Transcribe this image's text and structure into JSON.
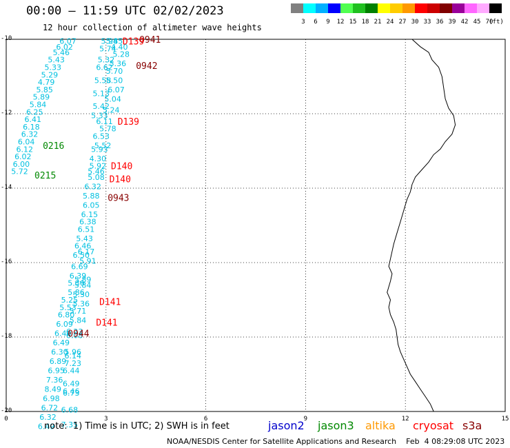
{
  "header": {
    "title": "00:00 — 11:59 UTC 02/02/2023",
    "subtitle": "12 hour collection of altimeter wave heights"
  },
  "colorbar": {
    "colors": [
      "#808080",
      "#00ffff",
      "#00b0ff",
      "#0000ff",
      "#50ff50",
      "#20c020",
      "#008000",
      "#ffff00",
      "#ffcc00",
      "#ff9900",
      "#ff0000",
      "#cc0000",
      "#800000",
      "#990099",
      "#ff66ff",
      "#ffaaff",
      "#000000"
    ],
    "labels": [
      "3",
      "6",
      "9",
      "12",
      "15",
      "18",
      "21",
      "24",
      "27",
      "30",
      "33",
      "36",
      "39",
      "42",
      "45",
      "70",
      "(ft)"
    ]
  },
  "footer": {
    "note": "note:  1) Time is in UTC; 2) SWH is in feet",
    "satellites": [
      {
        "name": "jason2",
        "color": "#0000cc"
      },
      {
        "name": "jason3",
        "color": "#008800"
      },
      {
        "name": "altika",
        "color": "#ff9900"
      },
      {
        "name": "cryosat",
        "color": "#ff0000"
      },
      {
        "name": "s3a",
        "color": "#880000"
      }
    ],
    "credit": "NOAA/NESDIS Center for Satellite Applications and Research    Feb  4 08:29:08 UTC 2023"
  },
  "chart_data": {
    "type": "scatter",
    "xlim": [
      0,
      15
    ],
    "ylim": [
      -20,
      -10
    ],
    "x_ticks": [
      "0",
      "3",
      "6",
      "9",
      "12",
      "15"
    ],
    "y_ticks": [
      "-10",
      "-12",
      "-14",
      "-16",
      "-18",
      "-20"
    ],
    "grid": true,
    "colors": {
      "cyan": "#00c0e0",
      "green": "#008800",
      "red": "#ff0000",
      "darkred": "#880000",
      "coast": "#000000"
    },
    "coastline": [
      [
        12.2,
        -10.0
      ],
      [
        12.45,
        -10.2
      ],
      [
        12.7,
        -10.35
      ],
      [
        12.8,
        -10.55
      ],
      [
        13.0,
        -10.75
      ],
      [
        13.1,
        -11.0
      ],
      [
        13.15,
        -11.3
      ],
      [
        13.2,
        -11.6
      ],
      [
        13.3,
        -11.85
      ],
      [
        13.45,
        -12.05
      ],
      [
        13.5,
        -12.3
      ],
      [
        13.4,
        -12.55
      ],
      [
        13.2,
        -12.75
      ],
      [
        13.05,
        -12.95
      ],
      [
        12.85,
        -13.1
      ],
      [
        12.7,
        -13.3
      ],
      [
        12.5,
        -13.5
      ],
      [
        12.3,
        -13.7
      ],
      [
        12.2,
        -13.9
      ],
      [
        12.15,
        -14.1
      ],
      [
        12.05,
        -14.3
      ],
      [
        11.95,
        -14.6
      ],
      [
        11.85,
        -14.9
      ],
      [
        11.75,
        -15.2
      ],
      [
        11.65,
        -15.5
      ],
      [
        11.6,
        -15.7
      ],
      [
        11.55,
        -15.9
      ],
      [
        11.5,
        -16.1
      ],
      [
        11.6,
        -16.3
      ],
      [
        11.55,
        -16.5
      ],
      [
        11.5,
        -16.65
      ],
      [
        11.45,
        -16.8
      ],
      [
        11.5,
        -16.9
      ],
      [
        11.55,
        -17.0
      ],
      [
        11.5,
        -17.2
      ],
      [
        11.55,
        -17.4
      ],
      [
        11.65,
        -17.6
      ],
      [
        11.72,
        -17.8
      ],
      [
        11.75,
        -18.0
      ],
      [
        11.78,
        -18.2
      ],
      [
        11.85,
        -18.4
      ],
      [
        11.95,
        -18.6
      ],
      [
        12.05,
        -18.8
      ],
      [
        12.15,
        -19.0
      ],
      [
        12.3,
        -19.2
      ],
      [
        12.45,
        -19.4
      ],
      [
        12.6,
        -19.6
      ],
      [
        12.75,
        -19.8
      ],
      [
        12.85,
        -20.0
      ]
    ],
    "points": [
      {
        "x": 1.6,
        "y": -10.05,
        "label": "6.07",
        "color": "cyan"
      },
      {
        "x": 1.5,
        "y": -10.2,
        "label": "6.02",
        "color": "cyan"
      },
      {
        "x": 1.4,
        "y": -10.35,
        "label": "5.46",
        "color": "cyan"
      },
      {
        "x": 1.25,
        "y": -10.55,
        "label": "5.43",
        "color": "cyan"
      },
      {
        "x": 1.15,
        "y": -10.75,
        "label": "5.33",
        "color": "cyan"
      },
      {
        "x": 1.05,
        "y": -10.95,
        "label": "5.29",
        "color": "cyan"
      },
      {
        "x": 0.95,
        "y": -11.15,
        "label": "4.79",
        "color": "cyan"
      },
      {
        "x": 0.9,
        "y": -11.35,
        "label": "5.85",
        "color": "cyan"
      },
      {
        "x": 0.8,
        "y": -11.55,
        "label": "5.89",
        "color": "cyan"
      },
      {
        "x": 0.7,
        "y": -11.75,
        "label": "5.84",
        "color": "cyan"
      },
      {
        "x": 0.6,
        "y": -11.95,
        "label": "6.25",
        "color": "cyan"
      },
      {
        "x": 0.55,
        "y": -12.15,
        "label": "6.41",
        "color": "cyan"
      },
      {
        "x": 0.5,
        "y": -12.35,
        "label": "6.18",
        "color": "cyan"
      },
      {
        "x": 0.45,
        "y": -12.55,
        "label": "6.32",
        "color": "cyan"
      },
      {
        "x": 0.35,
        "y": -12.75,
        "label": "6.04",
        "color": "cyan"
      },
      {
        "x": 0.3,
        "y": -12.95,
        "label": "6.12",
        "color": "cyan"
      },
      {
        "x": 0.25,
        "y": -13.15,
        "label": "6.02",
        "color": "cyan"
      },
      {
        "x": 0.2,
        "y": -13.35,
        "label": "6.00",
        "color": "cyan"
      },
      {
        "x": 0.15,
        "y": -13.55,
        "label": "5.72",
        "color": "cyan"
      },
      {
        "x": 2.85,
        "y": -10.05,
        "label": "5.94",
        "color": "cyan"
      },
      {
        "x": 3.0,
        "y": -10.05,
        "label": "5.85",
        "color": "cyan"
      },
      {
        "x": 2.8,
        "y": -10.25,
        "label": "5.74",
        "color": "cyan"
      },
      {
        "x": 3.15,
        "y": -10.2,
        "label": "4.40",
        "color": "cyan"
      },
      {
        "x": 3.2,
        "y": -10.4,
        "label": "5.28",
        "color": "cyan"
      },
      {
        "x": 2.75,
        "y": -10.55,
        "label": "5.32",
        "color": "cyan"
      },
      {
        "x": 3.1,
        "y": -10.65,
        "label": "5.36",
        "color": "cyan"
      },
      {
        "x": 2.7,
        "y": -10.75,
        "label": "6.62",
        "color": "cyan"
      },
      {
        "x": 3.0,
        "y": -10.85,
        "label": "5.70",
        "color": "cyan"
      },
      {
        "x": 2.65,
        "y": -11.1,
        "label": "5.58",
        "color": "cyan"
      },
      {
        "x": 3.0,
        "y": -11.1,
        "label": "5.50",
        "color": "cyan"
      },
      {
        "x": 3.05,
        "y": -11.35,
        "label": "6.07",
        "color": "cyan"
      },
      {
        "x": 2.6,
        "y": -11.45,
        "label": "5.13",
        "color": "cyan"
      },
      {
        "x": 2.95,
        "y": -11.6,
        "label": "5.04",
        "color": "cyan"
      },
      {
        "x": 2.6,
        "y": -11.8,
        "label": "5.42",
        "color": "cyan"
      },
      {
        "x": 2.9,
        "y": -11.9,
        "label": "5.24",
        "color": "cyan"
      },
      {
        "x": 2.55,
        "y": -12.05,
        "label": "5.33",
        "color": "cyan"
      },
      {
        "x": 2.7,
        "y": -12.2,
        "label": "6.11",
        "color": "cyan"
      },
      {
        "x": 2.8,
        "y": -12.4,
        "label": "5.78",
        "color": "cyan"
      },
      {
        "x": 2.6,
        "y": -12.6,
        "label": "6.53",
        "color": "cyan"
      },
      {
        "x": 2.65,
        "y": -12.85,
        "label": "5.52",
        "color": "cyan"
      },
      {
        "x": 2.55,
        "y": -12.95,
        "label": "5.93",
        "color": "cyan"
      },
      {
        "x": 2.5,
        "y": -13.2,
        "label": "4.30",
        "color": "cyan"
      },
      {
        "x": 2.5,
        "y": -13.4,
        "label": "5.92",
        "color": "cyan"
      },
      {
        "x": 2.45,
        "y": -13.55,
        "label": "5.46",
        "color": "cyan"
      },
      {
        "x": 2.45,
        "y": -13.7,
        "label": "5.08",
        "color": "cyan"
      },
      {
        "x": 2.35,
        "y": -13.95,
        "label": "6.32",
        "color": "cyan"
      },
      {
        "x": 2.3,
        "y": -14.2,
        "label": "5.88",
        "color": "cyan"
      },
      {
        "x": 2.3,
        "y": -14.45,
        "label": "6.05",
        "color": "cyan"
      },
      {
        "x": 2.25,
        "y": -14.7,
        "label": "6.15",
        "color": "cyan"
      },
      {
        "x": 2.2,
        "y": -14.9,
        "label": "6.38",
        "color": "cyan"
      },
      {
        "x": 2.15,
        "y": -15.1,
        "label": "6.51",
        "color": "cyan"
      },
      {
        "x": 2.1,
        "y": -15.35,
        "label": "5.43",
        "color": "cyan"
      },
      {
        "x": 2.05,
        "y": -15.55,
        "label": "6.46",
        "color": "cyan"
      },
      {
        "x": 2.15,
        "y": -15.7,
        "label": "6.17",
        "color": "cyan"
      },
      {
        "x": 2.0,
        "y": -15.8,
        "label": "6.50",
        "color": "cyan"
      },
      {
        "x": 2.2,
        "y": -15.95,
        "label": "5.91",
        "color": "cyan"
      },
      {
        "x": 1.95,
        "y": -16.1,
        "label": "6.69",
        "color": "cyan"
      },
      {
        "x": 1.9,
        "y": -16.35,
        "label": "6.39",
        "color": "cyan"
      },
      {
        "x": 2.05,
        "y": -16.45,
        "label": "5.89",
        "color": "cyan"
      },
      {
        "x": 1.85,
        "y": -16.55,
        "label": "5.36",
        "color": "cyan"
      },
      {
        "x": 2.05,
        "y": -16.6,
        "label": "5.84",
        "color": "cyan"
      },
      {
        "x": 1.85,
        "y": -16.8,
        "label": "5.86",
        "color": "cyan"
      },
      {
        "x": 2.0,
        "y": -16.85,
        "label": "5.30",
        "color": "cyan"
      },
      {
        "x": 1.65,
        "y": -17.0,
        "label": "5.25",
        "color": "cyan"
      },
      {
        "x": 2.0,
        "y": -17.1,
        "label": "5.36",
        "color": "cyan"
      },
      {
        "x": 1.6,
        "y": -17.2,
        "label": "5.53",
        "color": "cyan"
      },
      {
        "x": 1.9,
        "y": -17.3,
        "label": "5.71",
        "color": "cyan"
      },
      {
        "x": 1.55,
        "y": -17.4,
        "label": "6.80",
        "color": "cyan"
      },
      {
        "x": 1.9,
        "y": -17.55,
        "label": "5.84",
        "color": "cyan"
      },
      {
        "x": 1.5,
        "y": -17.65,
        "label": "6.09",
        "color": "cyan"
      },
      {
        "x": 1.45,
        "y": -17.9,
        "label": "6.40",
        "color": "cyan"
      },
      {
        "x": 1.8,
        "y": -17.85,
        "label": "6.23",
        "color": "cyan"
      },
      {
        "x": 1.8,
        "y": -17.95,
        "label": "6.08",
        "color": "cyan"
      },
      {
        "x": 1.4,
        "y": -18.15,
        "label": "6.49",
        "color": "cyan"
      },
      {
        "x": 1.35,
        "y": -18.4,
        "label": "6.30",
        "color": "cyan"
      },
      {
        "x": 1.75,
        "y": -18.4,
        "label": "5.96",
        "color": "cyan"
      },
      {
        "x": 1.75,
        "y": -18.5,
        "label": "6.14",
        "color": "cyan"
      },
      {
        "x": 1.3,
        "y": -18.65,
        "label": "6.89",
        "color": "cyan"
      },
      {
        "x": 1.75,
        "y": -18.7,
        "label": "7.23",
        "color": "cyan"
      },
      {
        "x": 1.25,
        "y": -18.9,
        "label": "6.95",
        "color": "cyan"
      },
      {
        "x": 1.7,
        "y": -18.9,
        "label": "6.44",
        "color": "cyan"
      },
      {
        "x": 1.2,
        "y": -19.15,
        "label": "7.36",
        "color": "cyan"
      },
      {
        "x": 1.7,
        "y": -19.25,
        "label": "6.49",
        "color": "cyan"
      },
      {
        "x": 1.15,
        "y": -19.4,
        "label": "8.49",
        "color": "cyan"
      },
      {
        "x": 1.7,
        "y": -19.45,
        "label": "6.46",
        "color": "cyan"
      },
      {
        "x": 1.7,
        "y": -19.5,
        "label": "6.73",
        "color": "cyan"
      },
      {
        "x": 1.1,
        "y": -19.65,
        "label": "6.98",
        "color": "cyan"
      },
      {
        "x": 1.05,
        "y": -19.9,
        "label": "6.72",
        "color": "cyan"
      },
      {
        "x": 1.65,
        "y": -19.95,
        "label": "6.68",
        "color": "cyan"
      },
      {
        "x": 1.0,
        "y": -20.15,
        "label": "6.32",
        "color": "cyan"
      },
      {
        "x": 0.95,
        "y": -20.4,
        "label": "6.49",
        "color": "cyan"
      },
      {
        "x": 1.65,
        "y": -20.35,
        "label": "7.35",
        "color": "cyan"
      }
    ],
    "track_labels": [
      {
        "x": 4.0,
        "y": -10.0,
        "label": "0941",
        "color": "darkred"
      },
      {
        "x": 3.5,
        "y": -10.05,
        "label": "D139",
        "color": "red"
      },
      {
        "x": 3.9,
        "y": -10.7,
        "label": "0942",
        "color": "darkred"
      },
      {
        "x": 3.35,
        "y": -12.2,
        "label": "D139",
        "color": "red"
      },
      {
        "x": 1.1,
        "y": -12.85,
        "label": "0216",
        "color": "green"
      },
      {
        "x": 3.15,
        "y": -13.4,
        "label": "D140",
        "color": "red"
      },
      {
        "x": 0.85,
        "y": -13.65,
        "label": "0215",
        "color": "green"
      },
      {
        "x": 3.1,
        "y": -13.75,
        "label": "D140",
        "color": "red"
      },
      {
        "x": 3.05,
        "y": -14.25,
        "label": "0943",
        "color": "darkred"
      },
      {
        "x": 2.8,
        "y": -17.05,
        "label": "D141",
        "color": "red"
      },
      {
        "x": 2.7,
        "y": -17.6,
        "label": "D141",
        "color": "red"
      },
      {
        "x": 1.85,
        "y": -17.9,
        "label": "0944",
        "color": "darkred"
      }
    ]
  }
}
